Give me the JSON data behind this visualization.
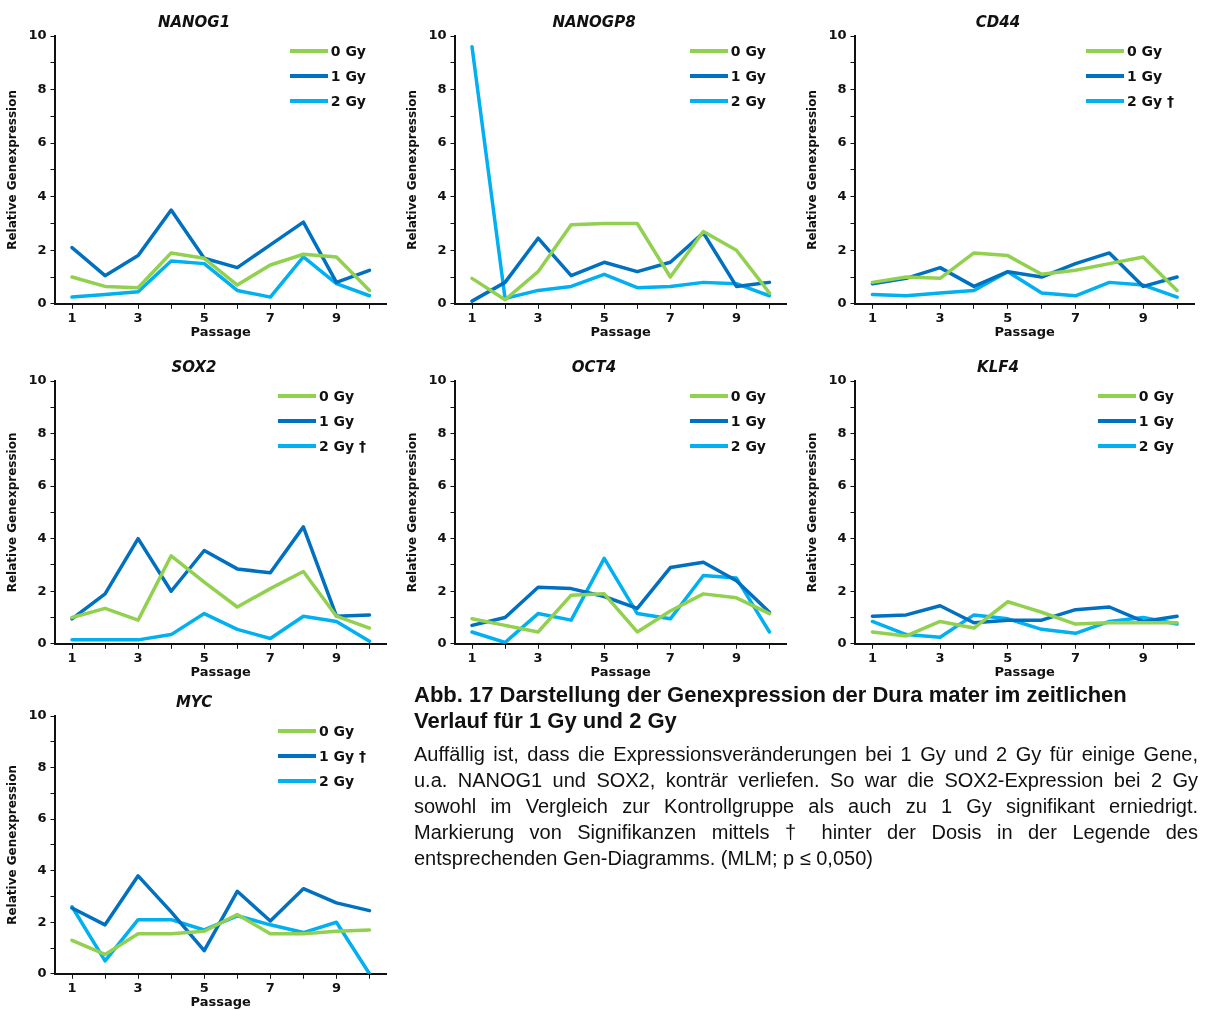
{
  "chart_data": [
    {
      "type": "line",
      "title": "NANOG1",
      "xlabel": "Passage",
      "ylabel": "Relative Genexpression",
      "x": [
        1,
        2,
        3,
        4,
        5,
        6,
        7,
        8,
        9,
        10
      ],
      "xlim": [
        0.5,
        10.5
      ],
      "xticks": [
        1,
        {
          "value": 2,
          "label": null
        },
        3,
        {
          "value": 4,
          "label": null
        },
        5,
        {
          "value": 6,
          "label": null
        },
        7,
        {
          "value": 8,
          "label": null
        },
        9,
        {
          "value": 10,
          "label": null
        }
      ],
      "ylim": [
        0,
        10
      ],
      "yticks": [
        0,
        {
          "value": 1,
          "label": null
        },
        2,
        {
          "value": 3,
          "label": null
        },
        4,
        {
          "value": 5,
          "label": null
        },
        6,
        {
          "value": 7,
          "label": null
        },
        8,
        {
          "value": 9,
          "label": null
        },
        10
      ],
      "legend": "top right",
      "grid": false,
      "series": [
        {
          "name": "0 Gy",
          "color": "#92d050",
          "values": [
            1.0,
            0.65,
            0.6,
            1.9,
            1.7,
            0.7,
            1.45,
            1.85,
            1.75,
            0.5
          ]
        },
        {
          "name": "1 Gy",
          "color": "#0070c0",
          "values": [
            2.1,
            1.05,
            1.8,
            3.5,
            1.7,
            1.35,
            2.2,
            3.05,
            0.8,
            1.25
          ]
        },
        {
          "name": "2 Gy",
          "color": "#00b0f0",
          "values": [
            0.25,
            0.35,
            0.45,
            1.6,
            1.5,
            0.5,
            0.25,
            1.75,
            0.75,
            0.3
          ]
        }
      ]
    },
    {
      "type": "line",
      "title": "NANOGP8",
      "xlabel": "Passage",
      "ylabel": "Relative Genexpression",
      "x": [
        1,
        2,
        3,
        4,
        5,
        6,
        7,
        8,
        9,
        10
      ],
      "xlim": [
        0.5,
        10.5
      ],
      "xticks": [
        1,
        {
          "value": 2,
          "label": null
        },
        3,
        {
          "value": 4,
          "label": null
        },
        5,
        {
          "value": 6,
          "label": null
        },
        7,
        {
          "value": 8,
          "label": null
        },
        9,
        {
          "value": 10,
          "label": null
        }
      ],
      "ylim": [
        0,
        10
      ],
      "yticks": [
        0,
        {
          "value": 1,
          "label": null
        },
        2,
        {
          "value": 3,
          "label": null
        },
        4,
        {
          "value": 5,
          "label": null
        },
        6,
        {
          "value": 7,
          "label": null
        },
        8,
        {
          "value": 9,
          "label": null
        },
        10
      ],
      "legend": "top right",
      "grid": false,
      "series": [
        {
          "name": "0 Gy",
          "color": "#92d050",
          "values": [
            0.95,
            0.15,
            1.2,
            2.95,
            3.0,
            3.0,
            1.0,
            2.7,
            2.0,
            0.4
          ]
        },
        {
          "name": "1 Gy",
          "color": "#0070c0",
          "values": [
            0.1,
            0.8,
            2.45,
            1.05,
            1.55,
            1.2,
            1.55,
            2.65,
            0.65,
            0.8
          ]
        },
        {
          "name": "2 Gy",
          "color": "#00b0f0",
          "values": [
            9.6,
            0.2,
            0.5,
            0.65,
            1.1,
            0.6,
            0.65,
            0.8,
            0.75,
            0.3
          ]
        }
      ]
    },
    {
      "type": "line",
      "title": "CD44",
      "xlabel": "Passage",
      "ylabel": "Relative Genexpression",
      "x": [
        1,
        2,
        3,
        4,
        5,
        6,
        7,
        8,
        9,
        10
      ],
      "xlim": [
        0.5,
        10.5
      ],
      "xticks": [
        1,
        {
          "value": 2,
          "label": null
        },
        3,
        {
          "value": 4,
          "label": null
        },
        5,
        {
          "value": 6,
          "label": null
        },
        7,
        {
          "value": 8,
          "label": null
        },
        9,
        {
          "value": 10,
          "label": null
        }
      ],
      "ylim": [
        0,
        10
      ],
      "yticks": [
        0,
        {
          "value": 1,
          "label": null
        },
        2,
        {
          "value": 3,
          "label": null
        },
        4,
        {
          "value": 5,
          "label": null
        },
        6,
        {
          "value": 7,
          "label": null
        },
        8,
        {
          "value": 9,
          "label": null
        },
        10
      ],
      "legend": "top right",
      "grid": false,
      "series": [
        {
          "name": "0 Gy",
          "color": "#92d050",
          "values": [
            0.8,
            1.0,
            0.95,
            1.9,
            1.8,
            1.1,
            1.25,
            1.5,
            1.75,
            0.5
          ]
        },
        {
          "name": "1 Gy",
          "color": "#0070c0",
          "values": [
            0.75,
            0.95,
            1.35,
            0.65,
            1.2,
            1.0,
            1.5,
            1.9,
            0.65,
            1.0
          ]
        },
        {
          "name": "2 Gy †",
          "color": "#00b0f0",
          "values": [
            0.35,
            0.3,
            0.4,
            0.5,
            1.2,
            0.4,
            0.3,
            0.8,
            0.7,
            0.25
          ]
        }
      ]
    },
    {
      "type": "line",
      "title": "SOX2",
      "xlabel": "Passage",
      "ylabel": "Relative Genexpression",
      "x": [
        1,
        2,
        3,
        4,
        5,
        6,
        7,
        8,
        9,
        10
      ],
      "xlim": [
        0.5,
        10.5
      ],
      "xticks": [
        1,
        {
          "value": 2,
          "label": null
        },
        3,
        {
          "value": 4,
          "label": null
        },
        5,
        {
          "value": 6,
          "label": null
        },
        7,
        {
          "value": 8,
          "label": null
        },
        9,
        {
          "value": 10,
          "label": null
        }
      ],
      "ylim": [
        0,
        10
      ],
      "yticks": [
        0,
        {
          "value": 1,
          "label": null
        },
        2,
        {
          "value": 3,
          "label": null
        },
        4,
        {
          "value": 5,
          "label": null
        },
        6,
        {
          "value": 7,
          "label": null
        },
        8,
        {
          "value": 9,
          "label": null
        },
        10
      ],
      "legend": "top right",
      "grid": false,
      "series": [
        {
          "name": "0 Gy",
          "color": "#92d050",
          "values": [
            1.0,
            1.35,
            0.9,
            3.35,
            2.35,
            1.4,
            2.1,
            2.75,
            1.05,
            0.6
          ]
        },
        {
          "name": "1 Gy",
          "color": "#0070c0",
          "values": [
            0.95,
            1.9,
            4.0,
            2.0,
            3.55,
            2.85,
            2.7,
            4.45,
            1.05,
            1.1
          ]
        },
        {
          "name": "2 Gy †",
          "color": "#00b0f0",
          "values": [
            0.15,
            0.15,
            0.15,
            0.35,
            1.15,
            0.55,
            0.2,
            1.05,
            0.85,
            0.1
          ]
        }
      ]
    },
    {
      "type": "line",
      "title": "OCT4",
      "xlabel": "Passage",
      "ylabel": "Relative Genexpression",
      "x": [
        1,
        2,
        3,
        4,
        5,
        6,
        7,
        8,
        9,
        10
      ],
      "xlim": [
        0.5,
        10.5
      ],
      "xticks": [
        1,
        {
          "value": 2,
          "label": null
        },
        3,
        {
          "value": 4,
          "label": null
        },
        5,
        {
          "value": 6,
          "label": null
        },
        7,
        {
          "value": 8,
          "label": null
        },
        9,
        {
          "value": 10,
          "label": null
        }
      ],
      "ylim": [
        0,
        10
      ],
      "yticks": [
        0,
        {
          "value": 1,
          "label": null
        },
        2,
        {
          "value": 3,
          "label": null
        },
        4,
        {
          "value": 5,
          "label": null
        },
        6,
        {
          "value": 7,
          "label": null
        },
        8,
        {
          "value": 9,
          "label": null
        },
        10
      ],
      "legend": "top right",
      "grid": false,
      "series": [
        {
          "name": "0 Gy",
          "color": "#92d050",
          "values": [
            0.95,
            0.7,
            0.45,
            1.85,
            1.9,
            0.45,
            1.25,
            1.9,
            1.75,
            1.15
          ]
        },
        {
          "name": "1 Gy",
          "color": "#0070c0",
          "values": [
            0.7,
            1.0,
            2.15,
            2.1,
            1.8,
            1.35,
            2.9,
            3.1,
            2.4,
            1.2
          ]
        },
        {
          "name": "2 Gy",
          "color": "#00b0f0",
          "values": [
            0.45,
            0.05,
            1.15,
            0.9,
            3.25,
            1.15,
            0.95,
            2.6,
            2.5,
            0.45
          ]
        }
      ]
    },
    {
      "type": "line",
      "title": "KLF4",
      "xlabel": "Passage",
      "ylabel": "Relative Genexpression",
      "x": [
        1,
        2,
        3,
        4,
        5,
        6,
        7,
        8,
        9,
        10
      ],
      "xlim": [
        0.5,
        10.5
      ],
      "xticks": [
        1,
        {
          "value": 2,
          "label": null
        },
        3,
        {
          "value": 4,
          "label": null
        },
        5,
        {
          "value": 6,
          "label": null
        },
        7,
        {
          "value": 8,
          "label": null
        },
        9,
        {
          "value": 10,
          "label": null
        }
      ],
      "ylim": [
        0,
        10
      ],
      "yticks": [
        0,
        {
          "value": 1,
          "label": null
        },
        2,
        {
          "value": 3,
          "label": null
        },
        4,
        {
          "value": 5,
          "label": null
        },
        6,
        {
          "value": 7,
          "label": null
        },
        8,
        {
          "value": 9,
          "label": null
        },
        10
      ],
      "legend": "top right",
      "grid": false,
      "series": [
        {
          "name": "0 Gy",
          "color": "#92d050",
          "values": [
            0.45,
            0.3,
            0.85,
            0.6,
            1.6,
            1.2,
            0.75,
            0.8,
            0.8,
            0.8
          ]
        },
        {
          "name": "1 Gy",
          "color": "#0070c0",
          "values": [
            1.05,
            1.1,
            1.45,
            0.8,
            0.9,
            0.9,
            1.3,
            1.4,
            0.85,
            1.05
          ]
        },
        {
          "name": "2 Gy",
          "color": "#00b0f0",
          "values": [
            0.85,
            0.35,
            0.25,
            1.1,
            0.95,
            0.55,
            0.4,
            0.85,
            1.0,
            0.75
          ]
        }
      ]
    },
    {
      "type": "line",
      "title": "MYC",
      "xlabel": "Passage",
      "ylabel": "Relative Genexpression",
      "x": [
        1,
        2,
        3,
        4,
        5,
        6,
        7,
        8,
        9,
        10
      ],
      "xlim": [
        0.5,
        10.5
      ],
      "xticks": [
        1,
        {
          "value": 2,
          "label": null
        },
        3,
        {
          "value": 4,
          "label": null
        },
        5,
        {
          "value": 6,
          "label": null
        },
        7,
        {
          "value": 8,
          "label": null
        },
        9,
        {
          "value": 10,
          "label": null
        }
      ],
      "ylim": [
        0,
        10
      ],
      "yticks": [
        0,
        {
          "value": 1,
          "label": null
        },
        2,
        {
          "value": 3,
          "label": null
        },
        4,
        {
          "value": 5,
          "label": null
        },
        6,
        {
          "value": 7,
          "label": null
        },
        8,
        {
          "value": 9,
          "label": null
        },
        10
      ],
      "legend": "top right",
      "grid": false,
      "series": [
        {
          "name": "0 Gy",
          "color": "#92d050",
          "values": [
            1.3,
            0.75,
            1.55,
            1.55,
            1.65,
            2.3,
            1.55,
            1.55,
            1.65,
            1.7
          ]
        },
        {
          "name": "1 Gy †",
          "color": "#0070c0",
          "values": [
            2.55,
            1.9,
            3.8,
            2.4,
            0.9,
            3.2,
            2.05,
            3.3,
            2.75,
            2.45
          ]
        },
        {
          "name": "2 Gy",
          "color": "#00b0f0",
          "values": [
            2.6,
            0.5,
            2.1,
            2.1,
            1.7,
            2.25,
            1.9,
            1.6,
            2.0,
            0.0
          ]
        }
      ]
    },
    {
      "type": "other",
      "title": "Abb. 17 Darstellung der Genexpression der Dura mater im zeitlichen Verlauf für 1 Gy und 2 Gy",
      "annotations": [
        "Auffällig ist, dass die Expressionsveränderungen bei 1 Gy und 2 Gy für einige Gene, u.a. NANOG1 und SOX2, konträr verliefen. So war die SOX2-Expression bei 2 Gy sowohl im Vergleich zur Kontrollgruppe als auch zu 1 Gy signifikant erniedrigt. Markierung von Signifikanzen mittels † hinter der Dosis in der Legende des entsprechenden Gen-Diagramms. (MLM; p ≤ 0,050)"
      ]
    }
  ]
}
